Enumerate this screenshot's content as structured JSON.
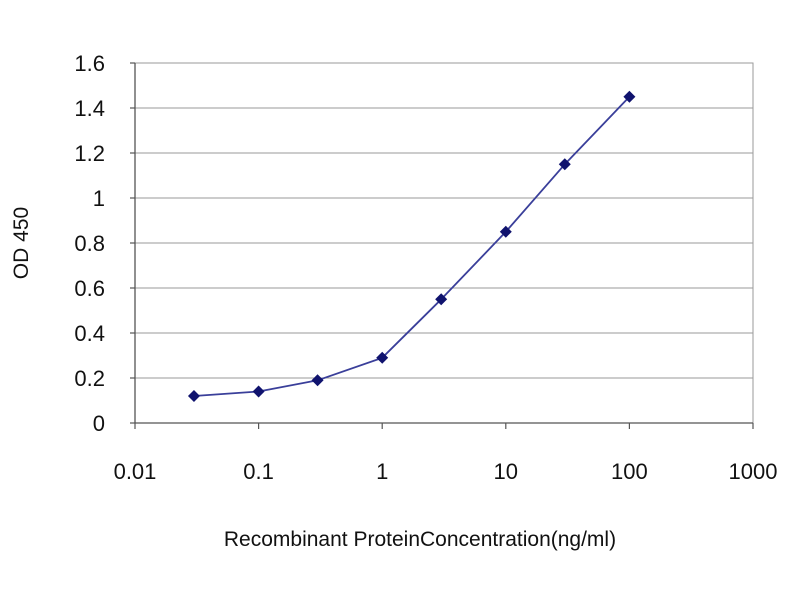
{
  "chart_data": {
    "type": "line",
    "title": "",
    "xlabel": "Recombinant ProteinConcentration(ng/ml)",
    "ylabel": "OD 450",
    "x_scale": "log",
    "xlim": [
      0.01,
      1000
    ],
    "ylim": [
      0,
      1.6
    ],
    "x_ticks": [
      {
        "value": 0.01,
        "label": "0.01"
      },
      {
        "value": 0.1,
        "label": "0.1"
      },
      {
        "value": 1,
        "label": "1"
      },
      {
        "value": 10,
        "label": "10"
      },
      {
        "value": 100,
        "label": "100"
      },
      {
        "value": 1000,
        "label": "1000"
      }
    ],
    "y_ticks": [
      {
        "value": 0,
        "label": "0"
      },
      {
        "value": 0.2,
        "label": "0.2"
      },
      {
        "value": 0.4,
        "label": "0.4"
      },
      {
        "value": 0.6,
        "label": "0.6"
      },
      {
        "value": 0.8,
        "label": "0.8"
      },
      {
        "value": 1.0,
        "label": "1"
      },
      {
        "value": 1.2,
        "label": "1.2"
      },
      {
        "value": 1.4,
        "label": "1.4"
      },
      {
        "value": 1.6,
        "label": "1.6"
      }
    ],
    "grid": {
      "horizontal": true,
      "vertical": false
    },
    "legend": "none",
    "colors": {
      "line": "#3a3f9a",
      "marker": "#10136e",
      "grid": "#9a9a9a",
      "axis": "#555555",
      "plot_border": "#9a9a9a"
    },
    "series": [
      {
        "x": [
          0.03,
          0.1,
          0.3,
          1,
          3,
          10,
          30,
          100
        ],
        "y": [
          0.12,
          0.14,
          0.19,
          0.29,
          0.55,
          0.85,
          1.15,
          1.45
        ]
      }
    ]
  }
}
